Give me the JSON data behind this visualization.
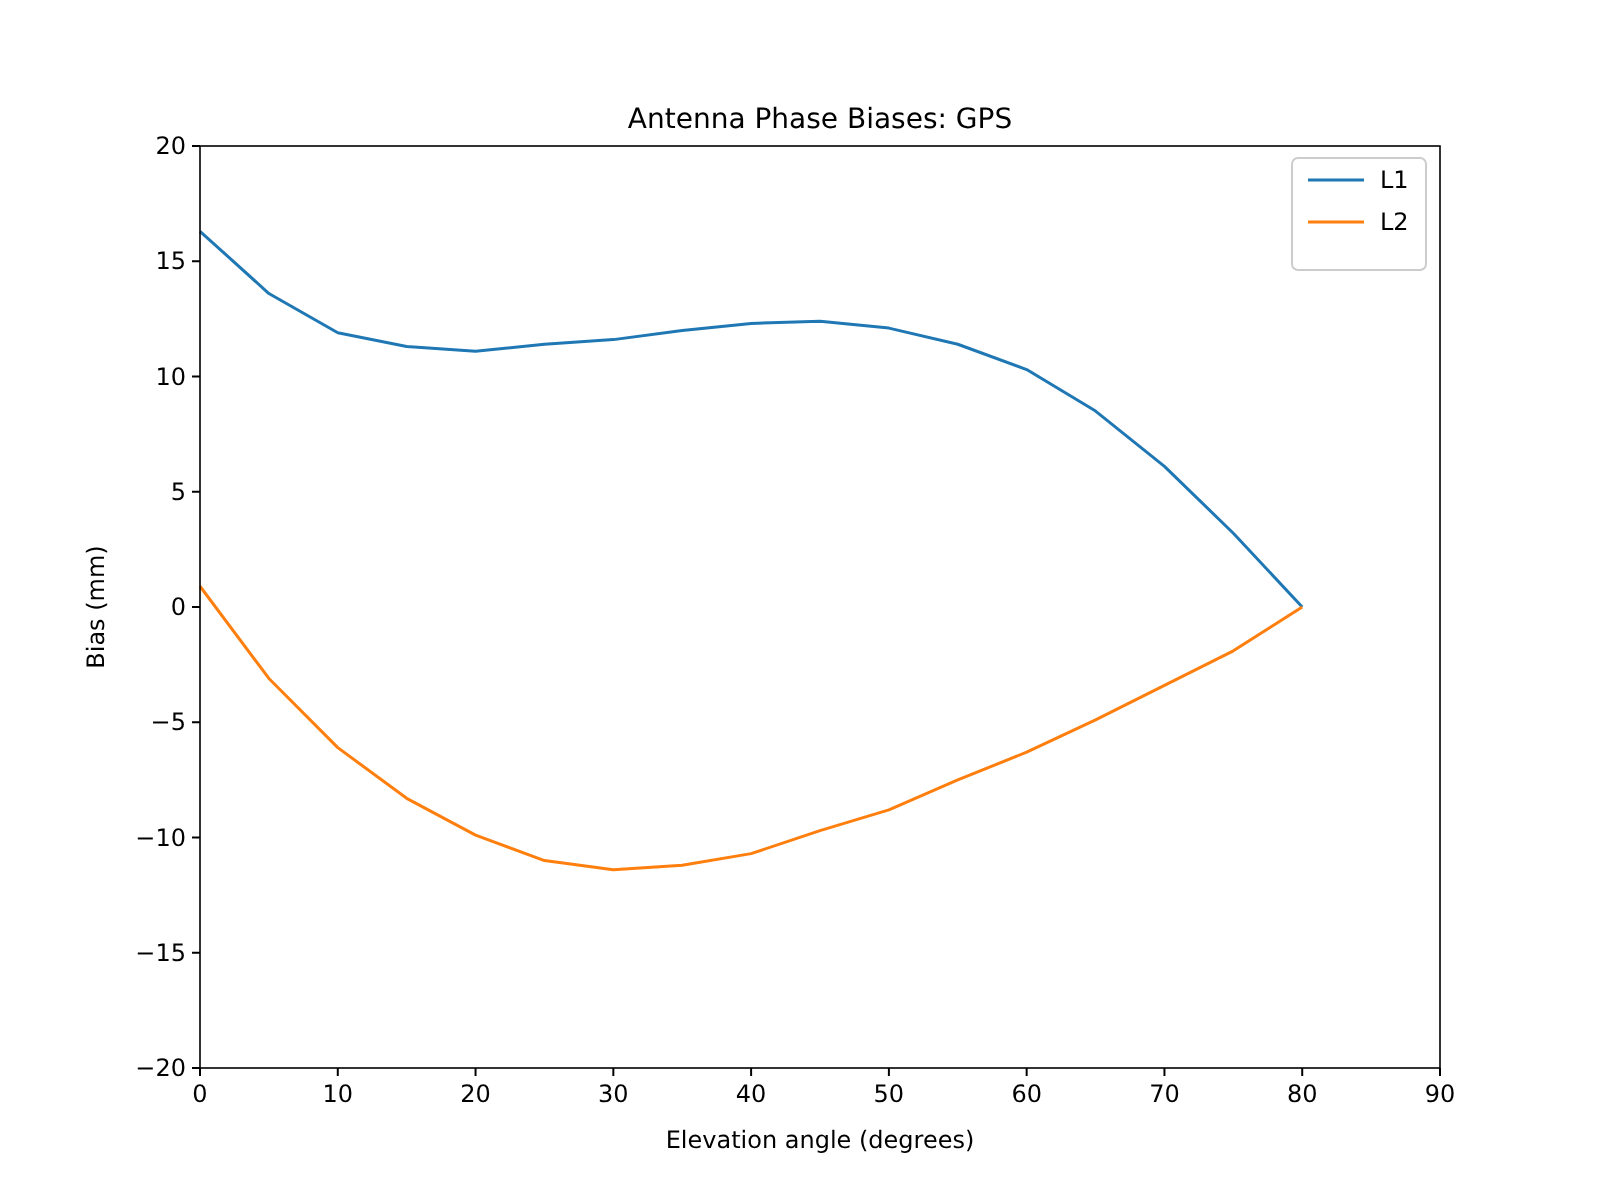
{
  "chart_data": {
    "type": "line",
    "title": "Antenna Phase Biases: GPS",
    "xlabel": "Elevation angle (degrees)",
    "ylabel": "Bias (mm)",
    "x": [
      0,
      5,
      10,
      15,
      20,
      25,
      30,
      35,
      40,
      45,
      50,
      55,
      60,
      65,
      70,
      75,
      80
    ],
    "series": [
      {
        "name": "L1",
        "color": "#1f77b4",
        "values": [
          16.3,
          13.6,
          11.9,
          11.3,
          11.1,
          11.4,
          11.6,
          12.0,
          12.3,
          12.4,
          12.1,
          11.4,
          10.3,
          8.5,
          6.1,
          3.2,
          0
        ]
      },
      {
        "name": "L2",
        "color": "#ff7f0e",
        "values": [
          0.9,
          -3.1,
          -6.1,
          -8.3,
          -9.9,
          -11.0,
          -11.4,
          -11.2,
          -10.7,
          -9.7,
          -8.8,
          -7.5,
          -6.3,
          -4.9,
          -3.4,
          -1.9,
          0
        ]
      }
    ],
    "xlim": [
      0,
      90
    ],
    "xticks": [
      0,
      10,
      20,
      30,
      40,
      50,
      60,
      70,
      80,
      90
    ],
    "ylim": [
      -20,
      20
    ],
    "yticks": [
      {
        "value": -20,
        "label": "−20"
      },
      {
        "value": -15,
        "label": "−15"
      },
      {
        "value": -10,
        "label": "−10"
      },
      {
        "value": -5,
        "label": "−5"
      },
      0,
      5,
      10,
      15,
      20
    ],
    "legend": "top right",
    "grid": false,
    "marker": "none",
    "line_style": "solid"
  }
}
